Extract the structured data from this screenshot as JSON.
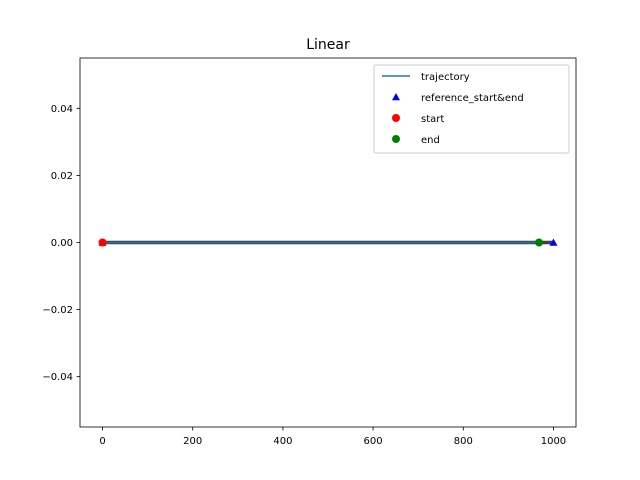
{
  "chart_data": {
    "type": "line",
    "title": "Linear",
    "xlabel": "",
    "ylabel": "",
    "xlim": [
      -50,
      1050
    ],
    "ylim": [
      -0.055,
      0.055
    ],
    "xticks": [
      0,
      200,
      400,
      600,
      800,
      1000
    ],
    "xtick_labels": [
      "0",
      "200",
      "400",
      "600",
      "800",
      "1000"
    ],
    "yticks": [
      -0.04,
      -0.02,
      0.0,
      0.02,
      0.04
    ],
    "ytick_labels": [
      "−0.04",
      "−0.02",
      "0.00",
      "0.02",
      "0.04"
    ],
    "grid": false,
    "legend_position": "upper right",
    "reference_line": {
      "x": [
        0,
        1000
      ],
      "y": [
        0,
        0
      ],
      "color": "#404040"
    },
    "series": [
      {
        "name": "trajectory",
        "kind": "line",
        "x": [
          0,
          968
        ],
        "y": [
          0,
          0
        ],
        "color": "#1f77b4"
      },
      {
        "name": "reference_start&end",
        "kind": "scatter",
        "marker": "triangle",
        "x": [
          0,
          1000
        ],
        "y": [
          0,
          0
        ],
        "color": "#0000ff"
      },
      {
        "name": "start",
        "kind": "scatter",
        "marker": "circle",
        "x": [
          0
        ],
        "y": [
          0
        ],
        "color": "#ff0000"
      },
      {
        "name": "end",
        "kind": "scatter",
        "marker": "circle",
        "x": [
          968
        ],
        "y": [
          0
        ],
        "color": "#008000"
      }
    ]
  }
}
